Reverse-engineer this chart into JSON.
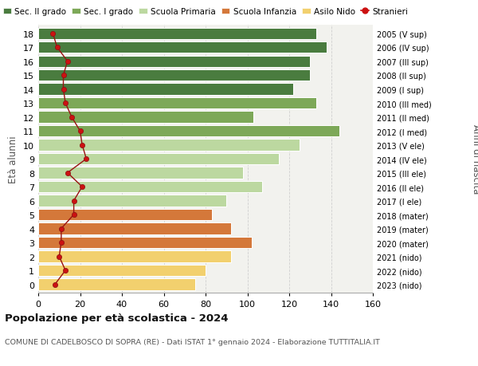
{
  "ages": [
    18,
    17,
    16,
    15,
    14,
    13,
    12,
    11,
    10,
    9,
    8,
    7,
    6,
    5,
    4,
    3,
    2,
    1,
    0
  ],
  "bar_values": [
    133,
    138,
    130,
    130,
    122,
    133,
    103,
    144,
    125,
    115,
    98,
    107,
    90,
    83,
    92,
    102,
    92,
    80,
    75
  ],
  "bar_colors": [
    "#4a7c3f",
    "#4a7c3f",
    "#4a7c3f",
    "#4a7c3f",
    "#4a7c3f",
    "#7da858",
    "#7da858",
    "#7da858",
    "#bcd8a0",
    "#bcd8a0",
    "#bcd8a0",
    "#bcd8a0",
    "#bcd8a0",
    "#d4783a",
    "#d4783a",
    "#d4783a",
    "#f2d06e",
    "#f2d06e",
    "#f2d06e"
  ],
  "stranieri_values": [
    7,
    9,
    14,
    12,
    12,
    13,
    16,
    20,
    21,
    23,
    14,
    21,
    17,
    17,
    11,
    11,
    10,
    13,
    8
  ],
  "right_labels": [
    "2005 (V sup)",
    "2006 (IV sup)",
    "2007 (III sup)",
    "2008 (II sup)",
    "2009 (I sup)",
    "2010 (III med)",
    "2011 (II med)",
    "2012 (I med)",
    "2013 (V ele)",
    "2014 (IV ele)",
    "2015 (III ele)",
    "2016 (II ele)",
    "2017 (I ele)",
    "2018 (mater)",
    "2019 (mater)",
    "2020 (mater)",
    "2021 (nido)",
    "2022 (nido)",
    "2023 (nido)"
  ],
  "legend_labels": [
    "Sec. II grado",
    "Sec. I grado",
    "Scuola Primaria",
    "Scuola Infanzia",
    "Asilo Nido",
    "Stranieri"
  ],
  "legend_colors": [
    "#4a7c3f",
    "#7da858",
    "#bcd8a0",
    "#d4783a",
    "#f2d06e",
    "#cc1111"
  ],
  "ylabel": "Età alunni",
  "right_ylabel": "Anni di nascita",
  "title1": "Popolazione per età scolastica - 2024",
  "title2": "COMUNE DI CADELBOSCO DI SOPRA (RE) - Dati ISTAT 1° gennaio 2024 - Elaborazione TUTTITALIA.IT",
  "xlim": [
    0,
    160
  ],
  "xticks": [
    0,
    20,
    40,
    60,
    80,
    100,
    120,
    140,
    160
  ],
  "bg_color": "#ffffff",
  "bar_bg_color": "#f2f2ee",
  "grid_color": "#d0d0d0"
}
